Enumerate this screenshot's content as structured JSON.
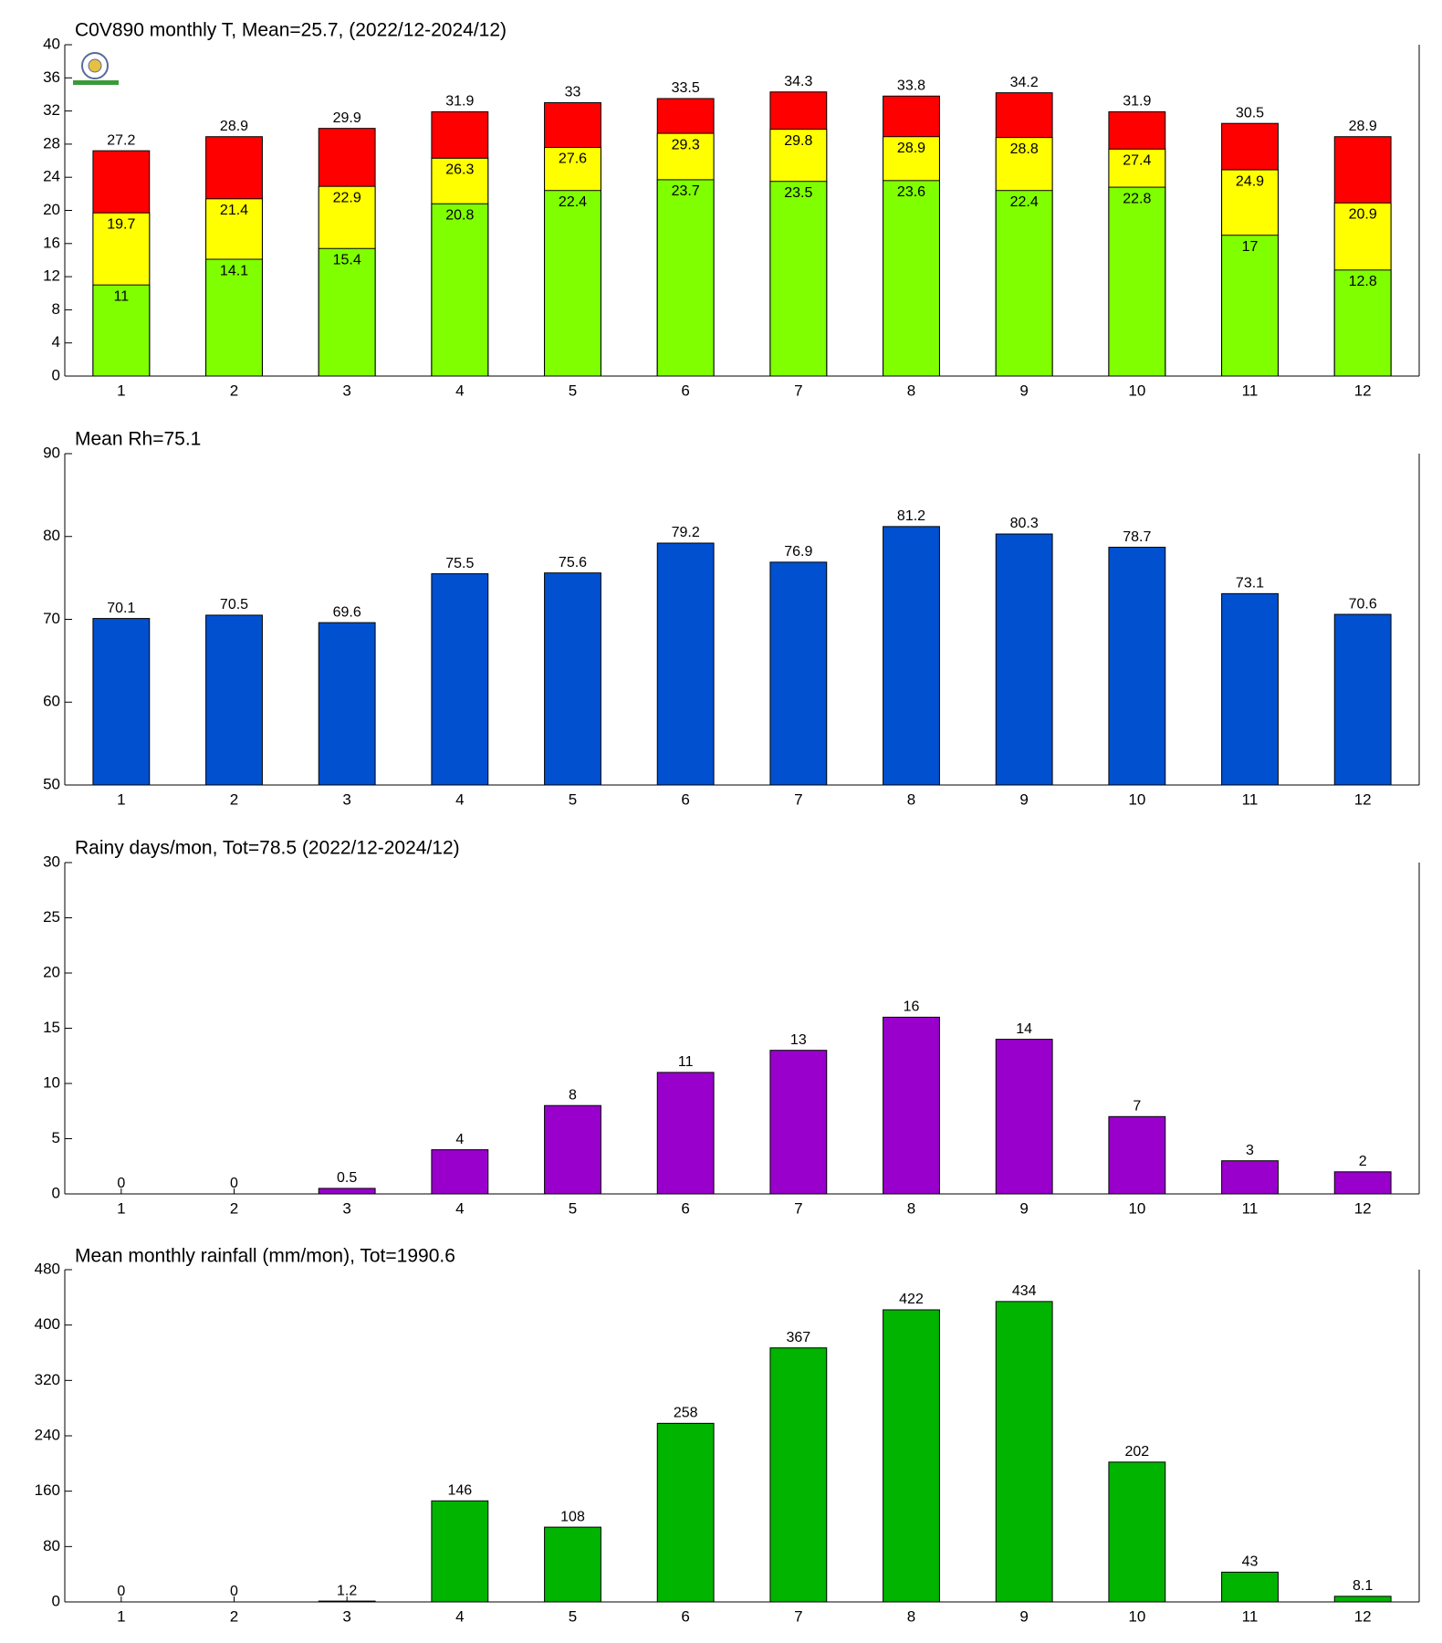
{
  "chart_data": [
    {
      "type": "bar",
      "title": "C0V890 monthly T, Mean=25.7, (2022/12-2024/12)",
      "categories": [
        "1",
        "2",
        "3",
        "4",
        "5",
        "6",
        "7",
        "8",
        "9",
        "10",
        "11",
        "12"
      ],
      "series": [
        {
          "color": "#ff0000",
          "values": [
            27.2,
            28.9,
            29.9,
            31.9,
            33,
            33.5,
            34.3,
            33.8,
            34.2,
            31.9,
            30.5,
            28.9
          ]
        },
        {
          "color": "#ffff00",
          "values": [
            19.7,
            21.4,
            22.9,
            26.3,
            27.6,
            29.3,
            29.8,
            28.9,
            28.8,
            27.4,
            24.9,
            20.9
          ]
        },
        {
          "color": "#80ff00",
          "values": [
            11,
            14.1,
            15.4,
            20.8,
            22.4,
            23.7,
            23.5,
            23.6,
            22.4,
            22.8,
            17,
            12.8
          ]
        }
      ],
      "ylim": [
        0,
        40
      ],
      "yticks": [
        0,
        4,
        8,
        12,
        16,
        20,
        24,
        28,
        32,
        36,
        40
      ]
    },
    {
      "type": "bar",
      "title": "Mean Rh=75.1",
      "categories": [
        "1",
        "2",
        "3",
        "4",
        "5",
        "6",
        "7",
        "8",
        "9",
        "10",
        "11",
        "12"
      ],
      "values": [
        70.1,
        70.5,
        69.6,
        75.5,
        75.6,
        79.2,
        76.9,
        81.2,
        80.3,
        78.7,
        73.1,
        70.6
      ],
      "color": "#0050d0",
      "ylim": [
        50,
        90
      ],
      "yticks": [
        50,
        60,
        70,
        80,
        90
      ]
    },
    {
      "type": "bar",
      "title": "Rainy days/mon, Tot=78.5 (2022/12-2024/12)",
      "categories": [
        "1",
        "2",
        "3",
        "4",
        "5",
        "6",
        "7",
        "8",
        "9",
        "10",
        "11",
        "12"
      ],
      "values": [
        0,
        0,
        0.5,
        4,
        8,
        11,
        13,
        16,
        14,
        7,
        3,
        2
      ],
      "color": "#9900cc",
      "ylim": [
        0,
        30
      ],
      "yticks": [
        0,
        5,
        10,
        15,
        20,
        25,
        30
      ]
    },
    {
      "type": "bar",
      "title": "Mean monthly rainfall (mm/mon), Tot=1990.6",
      "categories": [
        "1",
        "2",
        "3",
        "4",
        "5",
        "6",
        "7",
        "8",
        "9",
        "10",
        "11",
        "12"
      ],
      "values": [
        0,
        0,
        1.2,
        146,
        108,
        258,
        367,
        422,
        434,
        202,
        43,
        8.1
      ],
      "color": "#00b400",
      "ylim": [
        0,
        480
      ],
      "yticks": [
        0,
        80,
        160,
        240,
        320,
        400,
        480
      ]
    }
  ]
}
